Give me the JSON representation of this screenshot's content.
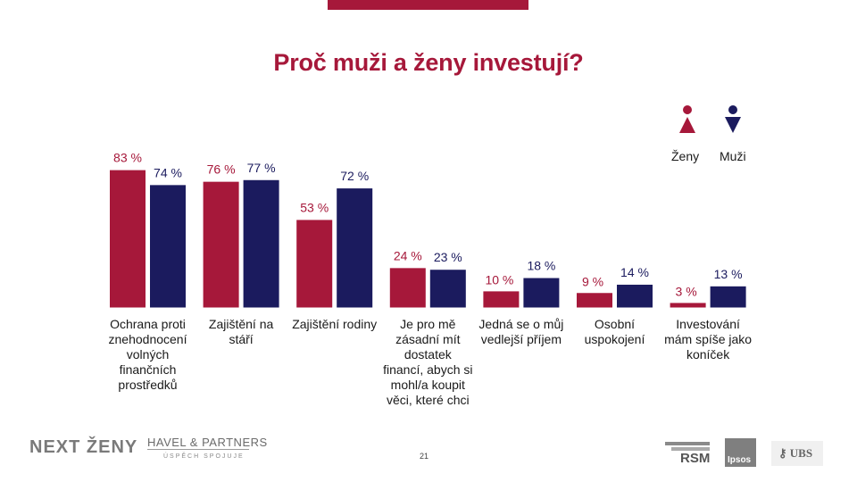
{
  "title": "Proč muži a ženy investují?",
  "colors": {
    "zeny": "#a6183a",
    "muzi": "#1b1b5e",
    "accent_bar": "#a6183a"
  },
  "legend": {
    "zeny": "Ženy",
    "muzi": "Muži"
  },
  "chart_data": {
    "type": "bar",
    "title": "Proč muži a ženy investují?",
    "categories": [
      "Ochrana proti znehodnocení volných finančních prostředků",
      "Zajištění na stáří",
      "Zajištění rodiny",
      "Je pro mě zásadní mít dostatek financí, abych si mohl/a koupit věci, které chci",
      "Jedná se o můj vedlejší příjem",
      "Osobní uspokojení",
      "Investování mám spíše jako koníček"
    ],
    "category_lines": [
      [
        "Ochrana proti",
        "znehodnocení",
        "volných",
        "finančních",
        "prostředků"
      ],
      [
        "Zajištění na",
        "stáří"
      ],
      [
        "Zajištění rodiny"
      ],
      [
        "Je pro mě",
        "zásadní mít",
        "dostatek",
        "financí, abych si",
        "mohl/a koupit",
        "věci, které chci"
      ],
      [
        "Jedná se o můj",
        "vedlejší příjem"
      ],
      [
        "Osobní",
        "uspokojení"
      ],
      [
        "Investování",
        "mám spíše jako",
        "koníček"
      ]
    ],
    "series": [
      {
        "name": "Ženy",
        "values": [
          83,
          76,
          53,
          24,
          10,
          9,
          3
        ],
        "labels": [
          "83 %",
          "76 %",
          "53 %",
          "24 %",
          "10 %",
          "9 %",
          "3 %"
        ]
      },
      {
        "name": "Muži",
        "values": [
          74,
          77,
          72,
          23,
          18,
          14,
          13
        ],
        "labels": [
          "74 %",
          "77 %",
          "72 %",
          "23 %",
          "18 %",
          "14 %",
          "13 %"
        ]
      }
    ],
    "ylim": [
      0,
      100
    ],
    "legend_position": "top-right"
  },
  "footer": {
    "next_zeny": "NEXT ŽENY",
    "havel": "HAVEL & PARTNERS",
    "havel_sub": "ÚSPĚCH SPOJUJE",
    "page": "21",
    "rsm": "RSM",
    "ipsos": "Ipsos",
    "ubs": "UBS"
  }
}
